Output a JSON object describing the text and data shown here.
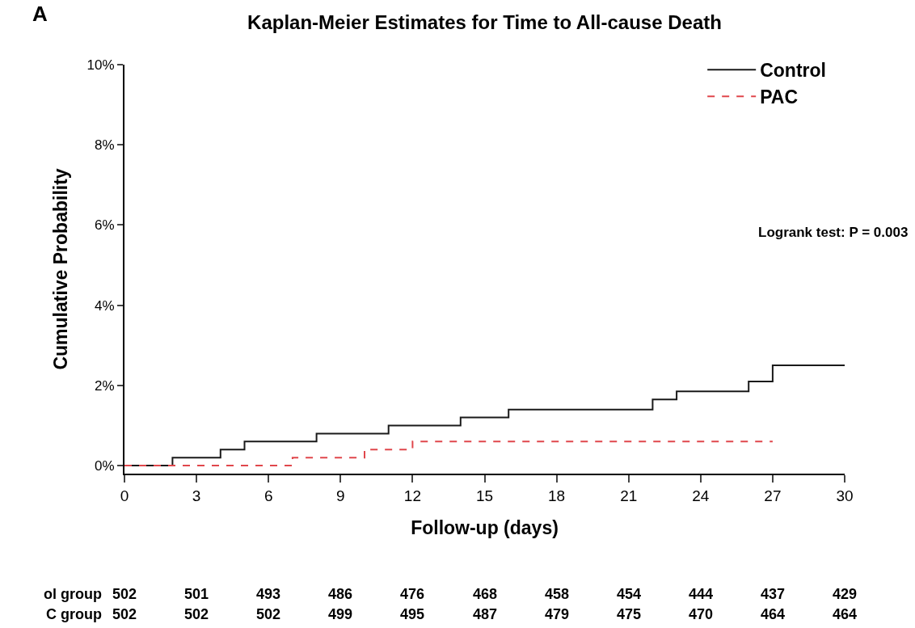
{
  "chart_data": {
    "type": "step",
    "title": "Kaplan-Meier Estimates for Time to All-cause Death",
    "xlabel": "Follow-up (days)",
    "ylabel": "Cumulative Probability",
    "annotations": [
      "A",
      "Logrank test: P = 0.003",
      "ol group  502  501  493  486  476  468  458  454  444  437  429",
      "C group  502  502  502  499  495  487  479  475  470  464  464"
    ],
    "series": [
      {
        "name": "Control",
        "color": "#1a1a1a",
        "line_style": "solid",
        "x": [
          0,
          2,
          4,
          5,
          8,
          11,
          14,
          16,
          22,
          23,
          26,
          27,
          30
        ],
        "values": [
          0,
          0.2,
          0.4,
          0.6,
          0.8,
          1.0,
          1.2,
          1.4,
          1.65,
          1.85,
          2.1,
          2.5,
          2.5
        ]
      },
      {
        "name": "PAC",
        "color": "#e0474c",
        "line_style": "dashed",
        "x": [
          0,
          7,
          10,
          12,
          27
        ],
        "values": [
          0,
          0.2,
          0.4,
          0.6,
          0.6
        ]
      }
    ],
    "xlim": [
      0,
      30
    ],
    "xticks": [
      0,
      3,
      6,
      9,
      12,
      15,
      18,
      21,
      24,
      27,
      30
    ],
    "ylim": [
      -0.2,
      10
    ],
    "yticks": [
      {
        "value": 0,
        "label": "0%"
      },
      {
        "value": 2,
        "label": "2%"
      },
      {
        "value": 4,
        "label": "4%"
      },
      {
        "value": 6,
        "label": "6%"
      },
      {
        "value": 8,
        "label": "8%"
      },
      {
        "value": 10,
        "label": "10%"
      }
    ],
    "grid": false,
    "legend": "top right",
    "marker": "none"
  }
}
